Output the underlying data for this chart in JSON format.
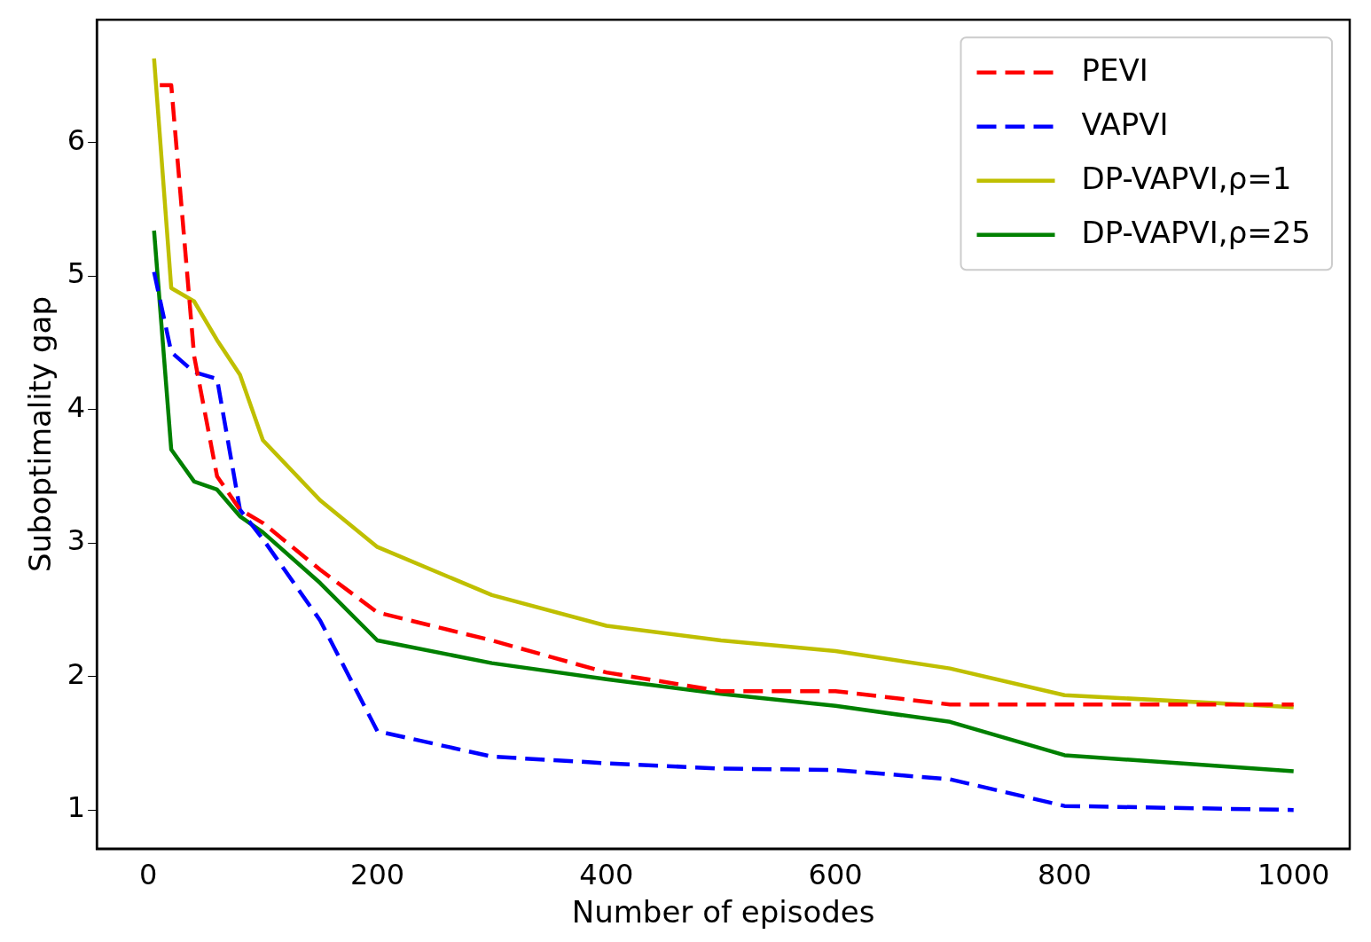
{
  "chart_data": {
    "type": "line",
    "xlabel": "Number of episodes",
    "ylabel": "Suboptimality gap",
    "xlim": [
      -45,
      1049
    ],
    "ylim": [
      0.71,
      6.92
    ],
    "xticks": [
      0,
      200,
      400,
      600,
      800,
      1000
    ],
    "yticks": [
      1,
      2,
      3,
      4,
      5,
      6
    ],
    "grid": false,
    "legend": "top right",
    "marker": "none",
    "series": [
      {
        "name": "PEVI",
        "color": "#ff0000",
        "line_style": "dashed",
        "x": [
          10,
          20,
          40,
          60,
          80,
          100,
          150,
          200,
          300,
          400,
          500,
          600,
          700,
          800,
          1000
        ],
        "values": [
          6.43,
          6.43,
          4.4,
          3.5,
          3.25,
          3.15,
          2.8,
          2.48,
          2.27,
          2.03,
          1.89,
          1.89,
          1.79,
          1.79,
          1.79
        ]
      },
      {
        "name": "VAPVI",
        "color": "#0000ff",
        "line_style": "dashed",
        "x": [
          5,
          20,
          40,
          60,
          80,
          100,
          150,
          200,
          300,
          400,
          500,
          600,
          700,
          800,
          1000
        ],
        "values": [
          5.03,
          4.43,
          4.28,
          4.23,
          3.25,
          3.03,
          2.42,
          1.59,
          1.4,
          1.35,
          1.31,
          1.3,
          1.23,
          1.03,
          1.0
        ]
      },
      {
        "name": "DP-VAPVI,ρ=1",
        "color": "#bfbf00",
        "line_style": "solid",
        "x": [
          5,
          20,
          40,
          60,
          80,
          100,
          150,
          200,
          300,
          400,
          500,
          600,
          700,
          800,
          1000
        ],
        "values": [
          6.63,
          4.91,
          4.81,
          4.52,
          4.26,
          3.77,
          3.32,
          2.97,
          2.61,
          2.38,
          2.27,
          2.19,
          2.06,
          1.86,
          1.77
        ]
      },
      {
        "name": "DP-VAPVI,ρ=25",
        "color": "#008000",
        "line_style": "solid",
        "x": [
          5,
          20,
          40,
          60,
          80,
          100,
          150,
          200,
          300,
          400,
          500,
          600,
          700,
          800,
          1000
        ],
        "values": [
          5.34,
          3.7,
          3.46,
          3.4,
          3.2,
          3.08,
          2.7,
          2.27,
          2.1,
          1.98,
          1.87,
          1.78,
          1.66,
          1.41,
          1.29
        ]
      }
    ]
  }
}
